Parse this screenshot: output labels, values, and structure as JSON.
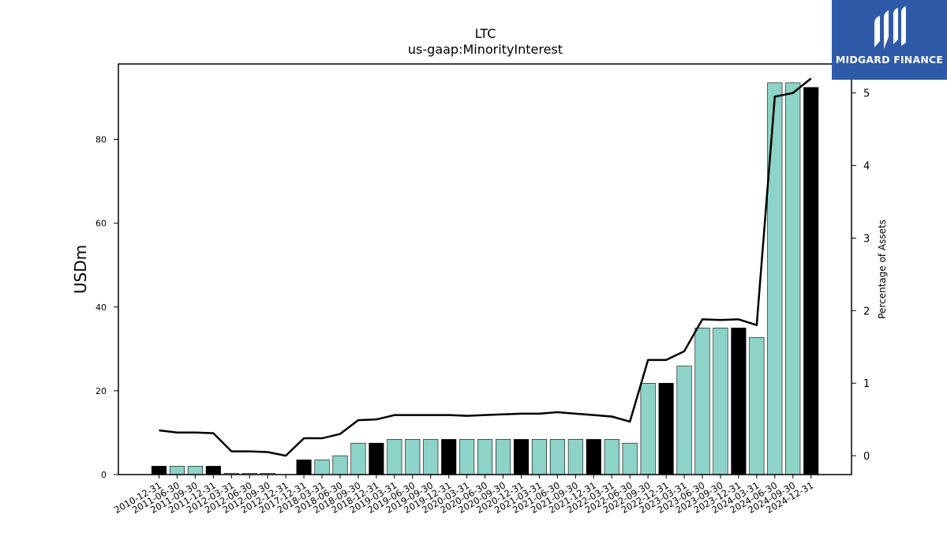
{
  "chart_data": {
    "type": "bar",
    "title": "LTC",
    "subtitle": "us-gaap:MinorityInterest",
    "ylabel": "USDm",
    "y2label": "Percentage of Assets",
    "ylim": [
      0,
      98
    ],
    "y2lim": [
      -0.26,
      5.4
    ],
    "yticks": [
      0,
      20,
      40,
      60,
      80
    ],
    "y2ticks": [
      0,
      1,
      2,
      3,
      4,
      5
    ],
    "colors": {
      "bar_quarter": "#8dd3c7",
      "bar_year_end": "#000000",
      "line": "#000000"
    },
    "categories": [
      "2010-12-31",
      "2011-06-30",
      "2011-09-30",
      "2011-12-31",
      "2012-03-31",
      "2012-06-30",
      "2012-09-30",
      "2012-12-31",
      "2017-12-31",
      "2018-03-31",
      "2018-06-30",
      "2018-09-30",
      "2018-12-31",
      "2019-03-31",
      "2019-06-30",
      "2019-09-30",
      "2019-12-31",
      "2020-03-31",
      "2020-06-30",
      "2020-09-30",
      "2020-12-31",
      "2021-03-31",
      "2021-06-30",
      "2021-09-30",
      "2021-12-31",
      "2022-03-31",
      "2022-06-30",
      "2022-09-30",
      "2022-12-31",
      "2023-03-31",
      "2023-06-30",
      "2023-09-30",
      "2023-12-31",
      "2024-03-31",
      "2024-06-30",
      "2024-09-30",
      "2024-12-31"
    ],
    "year_end": [
      true,
      false,
      false,
      true,
      false,
      false,
      false,
      true,
      true,
      false,
      false,
      false,
      true,
      false,
      false,
      false,
      true,
      false,
      false,
      false,
      true,
      false,
      false,
      false,
      true,
      false,
      false,
      false,
      true,
      false,
      false,
      false,
      true,
      false,
      false,
      false,
      true
    ],
    "series": [
      {
        "name": "USDm",
        "values": [
          2.0,
          2.0,
          2.0,
          2.0,
          0.3,
          0.3,
          0.3,
          0.0,
          3.5,
          3.5,
          4.5,
          7.5,
          7.5,
          8.4,
          8.4,
          8.4,
          8.4,
          8.4,
          8.4,
          8.4,
          8.4,
          8.4,
          8.4,
          8.4,
          8.4,
          8.4,
          7.5,
          21.8,
          21.8,
          25.9,
          35.0,
          35.0,
          35.0,
          32.7,
          93.5,
          93.5,
          92.4
        ]
      },
      {
        "name": "Percentage of Assets",
        "values": [
          0.35,
          0.32,
          0.32,
          0.31,
          0.06,
          0.06,
          0.05,
          0.0,
          0.24,
          0.24,
          0.3,
          0.49,
          0.5,
          0.56,
          0.56,
          0.56,
          0.56,
          0.55,
          0.56,
          0.57,
          0.58,
          0.58,
          0.6,
          0.58,
          0.56,
          0.54,
          0.47,
          1.32,
          1.32,
          1.44,
          1.88,
          1.87,
          1.88,
          1.8,
          4.95,
          5.0,
          5.2
        ]
      }
    ]
  },
  "logo": {
    "text": "MIDGARD FINANCE"
  }
}
